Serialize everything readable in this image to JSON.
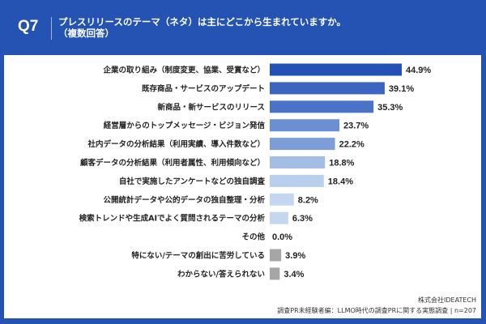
{
  "header": {
    "question": "Q7",
    "title_line1": "プレスリリースのテーマ（ネタ）は主にどこから生まれていますか。",
    "title_line2": "（複数回答）"
  },
  "chart_data": {
    "type": "bar",
    "orientation": "horizontal",
    "categories": [
      "企業の取り組み（制度変更、協業、受賞など）",
      "既存商品・サービスのアップデート",
      "新商品・新サービスのリリース",
      "経営層からのトップメッセージ・ビジョン発信",
      "社内データの分析結果（利用実績、導入件数など）",
      "顧客データの分析結果（利用者属性、利用傾向など）",
      "自社で実施したアンケートなどの独自調査",
      "公開統計データや公的データの独自整理・分析",
      "検索トレンドや生成AIでよく質問されるテーマの分析",
      "その他",
      "特にない/テーマの創出に苦労している",
      "わからない/答えられない"
    ],
    "values": [
      44.9,
      39.1,
      35.3,
      23.7,
      22.2,
      18.8,
      18.4,
      8.2,
      6.3,
      0.0,
      3.9,
      3.4
    ],
    "value_labels": [
      "44.9%",
      "39.1%",
      "35.3%",
      "23.7%",
      "22.2%",
      "18.8%",
      "18.4%",
      "8.2%",
      "6.3%",
      "0.0%",
      "3.9%",
      "3.4%"
    ],
    "colors": [
      "#2451b5",
      "#3a65c0",
      "#4a73c7",
      "#6a8fd2",
      "#7c9dd7",
      "#a3bde6",
      "#b9cfee",
      "#c3d7f1",
      "#c3d7f1",
      "#c3d7f1",
      "#a6a6a6",
      "#a6a6a6"
    ],
    "unit": "%",
    "grid": false
  },
  "footer": {
    "company": "株式会社IDEATECH",
    "survey": "調査PR未経験者編：LLMO時代の調査PRに関する実態調査 | n=207"
  }
}
